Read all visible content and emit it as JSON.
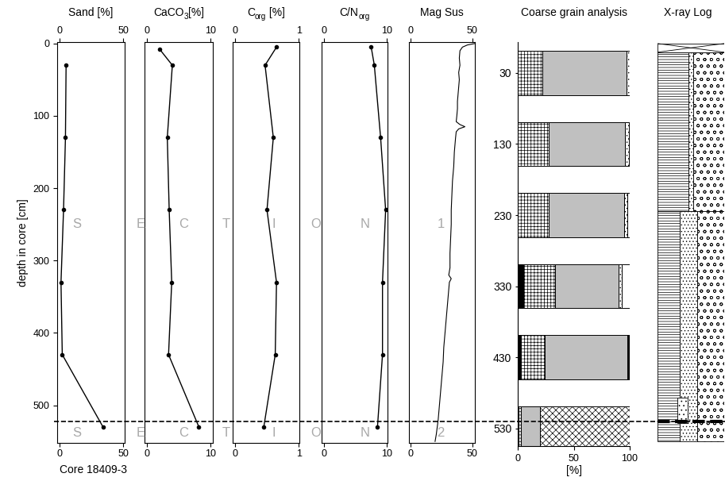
{
  "chart_data": [
    {
      "type": "line",
      "title": [
        {
          "text": "Sand [%]",
          "sub": false
        }
      ],
      "xlim": [
        -2,
        51
      ],
      "xticks": [
        0,
        50
      ],
      "ylim": [
        552,
        -2
      ],
      "yticks": [
        0,
        100,
        200,
        300,
        400,
        500
      ],
      "ylabel": "depth in core [cm]",
      "series": [
        {
          "color": "#000000",
          "marker": "o",
          "depth": [
            30,
            130,
            230,
            330,
            430,
            530
          ],
          "values": [
            5,
            4.5,
            3,
            1,
            2,
            34
          ]
        }
      ]
    },
    {
      "type": "line",
      "title": [
        {
          "text": "CaCO",
          "sub": false
        },
        {
          "text": "3",
          "sub": true
        },
        {
          "text": "[%]",
          "sub": false
        }
      ],
      "xlim": [
        -0.4,
        10.4
      ],
      "xticks": [
        0,
        10
      ],
      "ylim": [
        552,
        -2
      ],
      "tick_labels": "x",
      "series": [
        {
          "color": "#000000",
          "marker": "o",
          "depth": [
            8,
            30,
            130,
            230,
            330,
            430,
            530
          ],
          "values": [
            2,
            4,
            3.2,
            3.5,
            3.9,
            3.4,
            8.2
          ]
        }
      ]
    },
    {
      "type": "line",
      "title": [
        {
          "text": "C",
          "sub": false
        },
        {
          "text": "org",
          "sub": true
        },
        {
          "text": " [%]",
          "sub": false
        }
      ],
      "xlim": [
        -0.04,
        1.01
      ],
      "xticks": [
        0,
        1
      ],
      "ylim": [
        552,
        -2
      ],
      "tick_labels": "x",
      "series": [
        {
          "color": "#000000",
          "marker": "o",
          "depth": [
            5,
            30,
            130,
            230,
            330,
            430,
            530
          ],
          "values": [
            0.65,
            0.47,
            0.6,
            0.5,
            0.65,
            0.63,
            0.45
          ]
        }
      ]
    },
    {
      "type": "line",
      "title": [
        {
          "text": "C/N",
          "sub": false
        },
        {
          "text": "org",
          "sub": true
        }
      ],
      "xlim": [
        -0.4,
        10.1
      ],
      "xticks": [
        0,
        10
      ],
      "ylim": [
        552,
        -2
      ],
      "tick_labels": "x",
      "series": [
        {
          "color": "#000000",
          "marker": "o",
          "depth": [
            5,
            30,
            130,
            230,
            330,
            430,
            530
          ],
          "values": [
            7.5,
            8,
            9,
            9.8,
            9.3,
            9.3,
            8.5
          ]
        }
      ]
    },
    {
      "type": "line",
      "title": [
        {
          "text": "Mag Sus",
          "sub": false
        }
      ],
      "xlim": [
        -1,
        52
      ],
      "xticks": [
        0,
        50
      ],
      "ylim": [
        552,
        -2
      ],
      "tick_labels": "x",
      "series": [
        {
          "color": "#000000",
          "depth": [
            0,
            2,
            5,
            10,
            20,
            30,
            40,
            50,
            60,
            70,
            80,
            90,
            100,
            108,
            112,
            115,
            118,
            122,
            130,
            140,
            150,
            170,
            190,
            210,
            230,
            250,
            270,
            290,
            310,
            320,
            325,
            330,
            340,
            360,
            380,
            400,
            420,
            440,
            460,
            480,
            500,
            520,
            540,
            550
          ],
          "values": [
            52,
            46,
            42,
            40,
            39.5,
            40,
            39,
            39.5,
            39,
            38.5,
            38,
            38,
            37.5,
            37,
            40,
            44,
            39,
            37,
            36.5,
            36,
            35.5,
            35,
            34,
            33.5,
            33,
            33,
            32.5,
            32,
            32,
            31,
            33,
            31.5,
            31,
            30,
            29,
            28,
            27,
            26.5,
            25.5,
            24.5,
            23.5,
            22.5,
            21,
            20
          ]
        }
      ]
    },
    {
      "type": "bar",
      "orientation": "horizontal",
      "stacked": true,
      "title": [
        {
          "text": "Coarse grain analysis",
          "sub": false
        }
      ],
      "categories": [
        "30",
        "130",
        "230",
        "330",
        "430",
        "530"
      ],
      "xlim": [
        0,
        100
      ],
      "xticks": [
        0,
        50,
        100
      ],
      "xlabel": "[%]",
      "series": [
        {
          "color": "#000000",
          "values": [
            0,
            0,
            0,
            5,
            3,
            1
          ]
        },
        {
          "color": "#ffffff",
          "values": [
            22,
            28,
            28,
            28,
            21,
            2
          ]
        },
        {
          "color": "#c0c0c0",
          "values": [
            75,
            68,
            67,
            57,
            74,
            17
          ]
        },
        {
          "color": "#ffffff",
          "values": [
            3,
            3,
            3,
            3,
            0,
            0
          ]
        },
        {
          "color": "#ffffff",
          "values": [
            0,
            0,
            0,
            0,
            0,
            80
          ]
        },
        {
          "color": "#000000",
          "values": [
            0,
            0,
            0,
            0,
            2,
            0
          ]
        },
        {
          "color": "#ffffff",
          "values": [
            0,
            1,
            2,
            7,
            0,
            0
          ]
        }
      ]
    }
  ],
  "core_label": "Core 18409-3",
  "section_labels": [
    [
      "S",
      "E",
      "C",
      "T",
      "I",
      "O",
      "N",
      "1"
    ],
    [
      "S",
      "E",
      "C",
      "T",
      "I",
      "O",
      "N",
      "2"
    ]
  ],
  "section_boundary_depth": 522,
  "xray_log": {
    "title": "X-ray Log"
  }
}
